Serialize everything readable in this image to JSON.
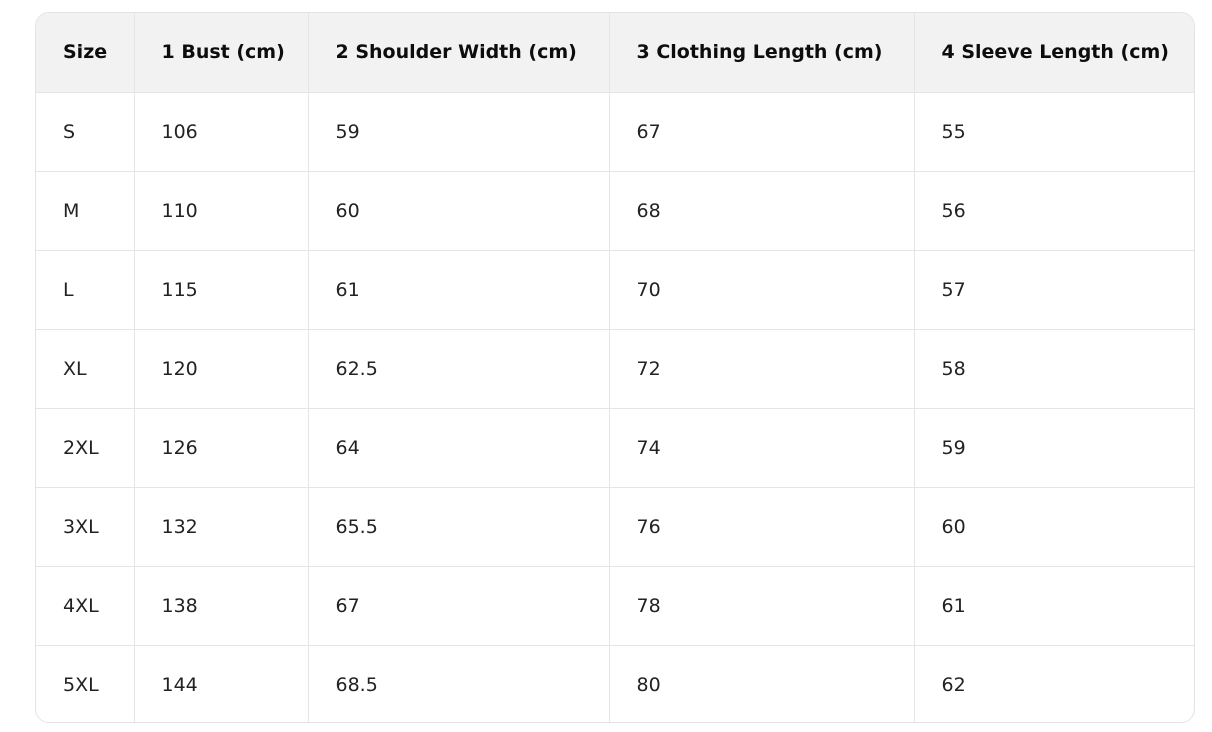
{
  "table": {
    "headers": [
      "Size",
      "1 Bust (cm)",
      "2 Shoulder Width (cm)",
      "3 Clothing Length (cm)",
      "4 Sleeve Length (cm)"
    ],
    "rows": [
      [
        "S",
        "106",
        "59",
        "67",
        "55"
      ],
      [
        "M",
        "110",
        "60",
        "68",
        "56"
      ],
      [
        "L",
        "115",
        "61",
        "70",
        "57"
      ],
      [
        "XL",
        "120",
        "62.5",
        "72",
        "58"
      ],
      [
        "2XL",
        "126",
        "64",
        "74",
        "59"
      ],
      [
        "3XL",
        "132",
        "65.5",
        "76",
        "60"
      ],
      [
        "4XL",
        "138",
        "67",
        "78",
        "61"
      ],
      [
        "5XL",
        "144",
        "68.5",
        "80",
        "62"
      ]
    ]
  }
}
